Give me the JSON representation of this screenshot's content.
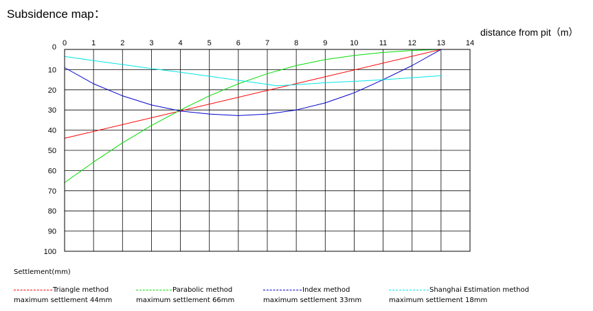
{
  "page_title": "Subsidence map：",
  "chart_data": {
    "type": "line",
    "title": "Subsidence map：",
    "xlabel": "distance from pit（m）",
    "ylabel": "Settlement(mm)",
    "xlim": [
      0,
      14
    ],
    "ylim": [
      0,
      100
    ],
    "y_inverted": true,
    "x_axis_position": "top",
    "grid": true,
    "x_ticks": [
      "0",
      "1",
      "2",
      "3",
      "4",
      "5",
      "6",
      "7",
      "8",
      "9",
      "10",
      "11",
      "12",
      "13",
      "14"
    ],
    "y_ticks": [
      "0",
      "10",
      "20",
      "30",
      "40",
      "50",
      "60",
      "70",
      "80",
      "90",
      "100"
    ],
    "legend_position": "bottom",
    "series": [
      {
        "name": "Triangle method",
        "note": "maximum settlement 44mm",
        "color": "#ff0000",
        "x": [
          0,
          13
        ],
        "y": [
          44,
          0
        ]
      },
      {
        "name": "Parabolic method",
        "note": "maximum settlement 66mm",
        "color": "#00dd00",
        "x": [
          0,
          1,
          2,
          3,
          4,
          5,
          6,
          7,
          8,
          9,
          10,
          11,
          12,
          13
        ],
        "y": [
          66,
          55.8,
          46.3,
          37.7,
          30,
          23,
          17,
          12,
          8,
          5,
          3,
          1.5,
          0.5,
          0
        ]
      },
      {
        "name": "Index method",
        "note": "maximum settlement 33mm",
        "color": "#0000cc",
        "x": [
          0,
          1,
          2,
          3,
          4,
          5,
          6,
          7,
          8,
          9,
          10,
          11,
          12,
          13
        ],
        "y": [
          9,
          17,
          23,
          27.5,
          30.5,
          32,
          32.8,
          32,
          30,
          26.5,
          21.5,
          15,
          8,
          0
        ]
      },
      {
        "name": "Shanghai Estimation method",
        "note": "maximum settlement 18mm",
        "color": "#00e5e5",
        "x": [
          0,
          1,
          2,
          3,
          4,
          5,
          6,
          7,
          7.3,
          8,
          9,
          10,
          11,
          12,
          13
        ],
        "y": [
          3.5,
          5.5,
          7.5,
          9.5,
          11.3,
          13.3,
          15.3,
          17.3,
          18,
          17.5,
          16.5,
          15.8,
          15,
          14,
          13
        ]
      }
    ]
  }
}
